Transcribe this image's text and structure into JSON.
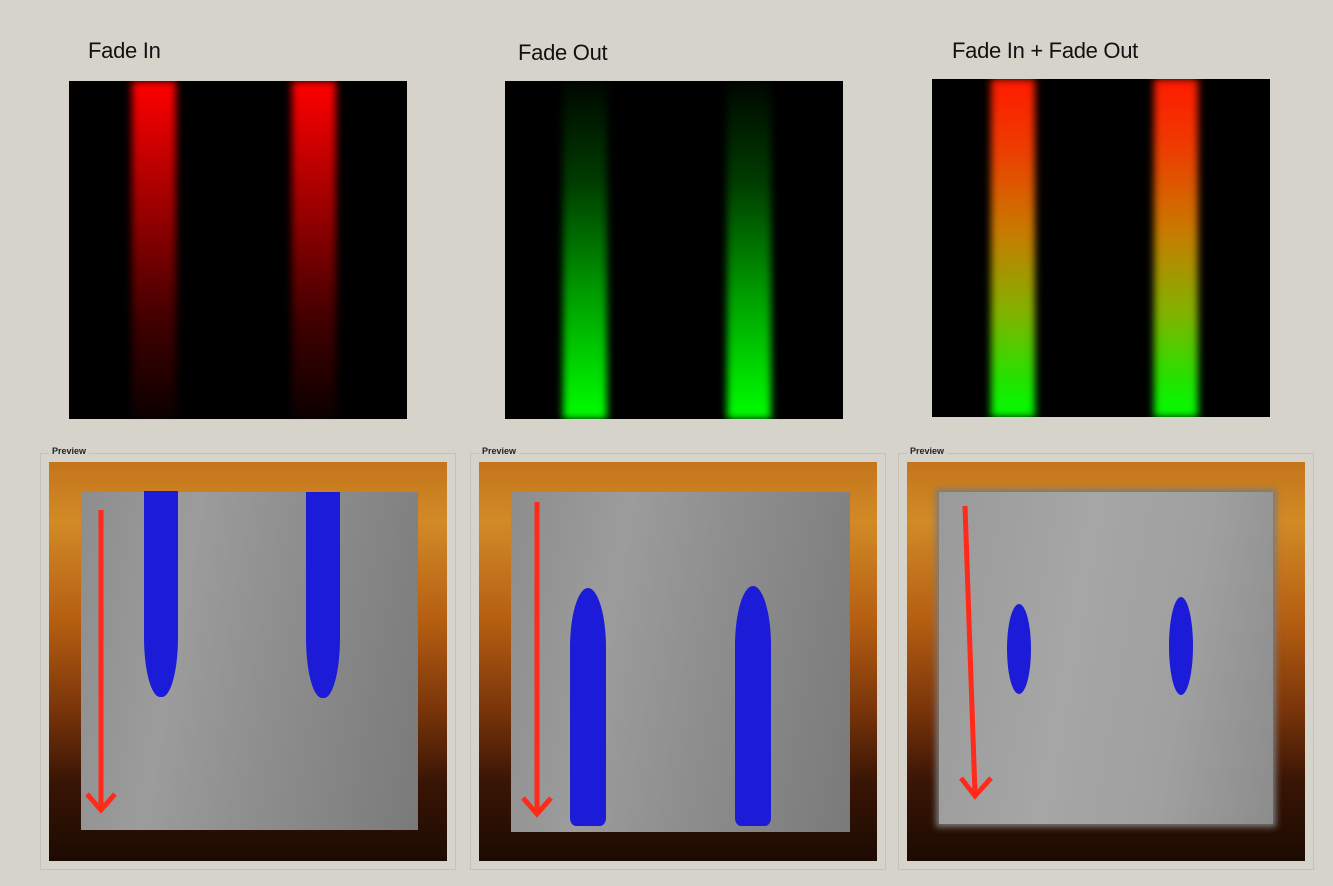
{
  "panels": [
    {
      "title": "Fade In",
      "preview_label": "Preview"
    },
    {
      "title": "Fade Out",
      "preview_label": "Preview"
    },
    {
      "title": "Fade In + Fade Out",
      "preview_label": "Preview"
    }
  ],
  "colors": {
    "background": "#d6d4ca",
    "fade_in_stripe": "#ff0000",
    "fade_out_stripe": "#00ff00",
    "blob": "#1b1bd8",
    "arrow": "#ff2a1a"
  }
}
